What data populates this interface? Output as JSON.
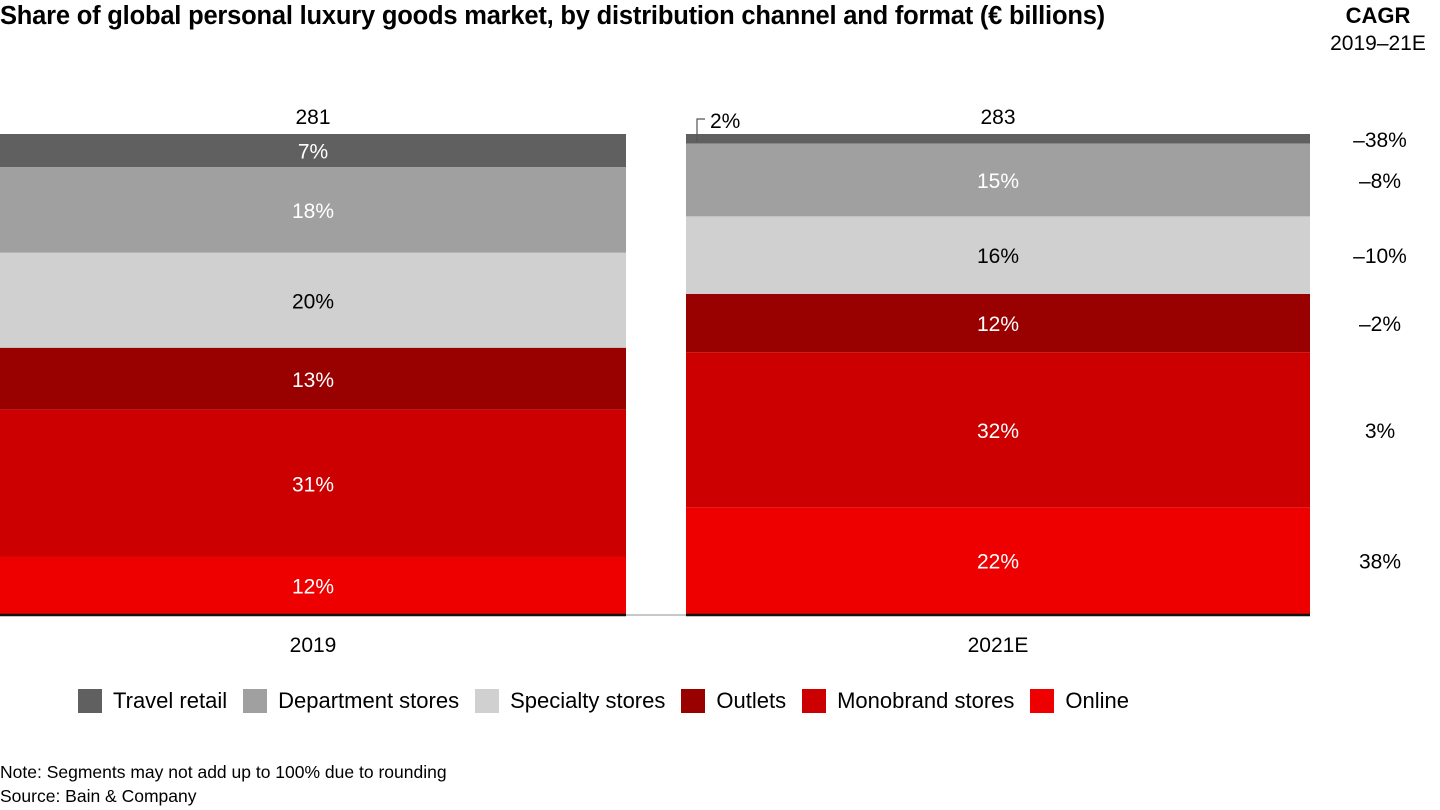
{
  "chart_data": {
    "type": "bar",
    "stacked": true,
    "title": "Share of global personal luxury goods market, by distribution channel and format (€ billions)",
    "xlabel": "",
    "ylabel": "",
    "categories": [
      "2019",
      "2021E"
    ],
    "totals": [
      "281",
      "283"
    ],
    "series": [
      {
        "name": "Travel retail",
        "color": "#606060",
        "label_color": "#ffffff",
        "values": [
          7,
          2
        ],
        "labels": [
          "7%",
          "2%"
        ],
        "cagr": "–38%"
      },
      {
        "name": "Department stores",
        "color": "#a0a0a0",
        "label_color": "#ffffff",
        "values": [
          18,
          15
        ],
        "labels": [
          "18%",
          "15%"
        ],
        "cagr": "–8%"
      },
      {
        "name": "Specialty stores",
        "color": "#d0d0d0",
        "label_color": "#000000",
        "values": [
          20,
          16
        ],
        "labels": [
          "20%",
          "16%"
        ],
        "cagr": "–10%"
      },
      {
        "name": "Outlets",
        "color": "#990000",
        "label_color": "#ffffff",
        "values": [
          13,
          12
        ],
        "labels": [
          "13%",
          "12%"
        ],
        "cagr": "–2%"
      },
      {
        "name": "Monobrand stores",
        "color": "#cc0000",
        "label_color": "#ffffff",
        "values": [
          31,
          32
        ],
        "labels": [
          "31%",
          "32%"
        ],
        "cagr": "3%"
      },
      {
        "name": "Online",
        "color": "#ee0000",
        "label_color": "#ffffff",
        "values": [
          12,
          22
        ],
        "labels": [
          "12%",
          "22%"
        ],
        "cagr": "38%"
      }
    ],
    "cagr_header": {
      "title": "CAGR",
      "period": "2019–21E"
    },
    "legend_position": "bottom",
    "grid": false,
    "callouts": [
      {
        "series": "Travel retail",
        "category": "2021E",
        "text": "2%"
      }
    ]
  },
  "legend": [
    {
      "label": "Travel retail",
      "color": "#606060"
    },
    {
      "label": "Department stores",
      "color": "#a0a0a0"
    },
    {
      "label": "Specialty stores",
      "color": "#d0d0d0"
    },
    {
      "label": "Outlets",
      "color": "#990000"
    },
    {
      "label": "Monobrand stores",
      "color": "#cc0000"
    },
    {
      "label": "Online",
      "color": "#ee0000"
    }
  ],
  "notes": {
    "note": "Note: Segments may not add up to 100% due to rounding",
    "source": "Source: Bain & Company"
  }
}
